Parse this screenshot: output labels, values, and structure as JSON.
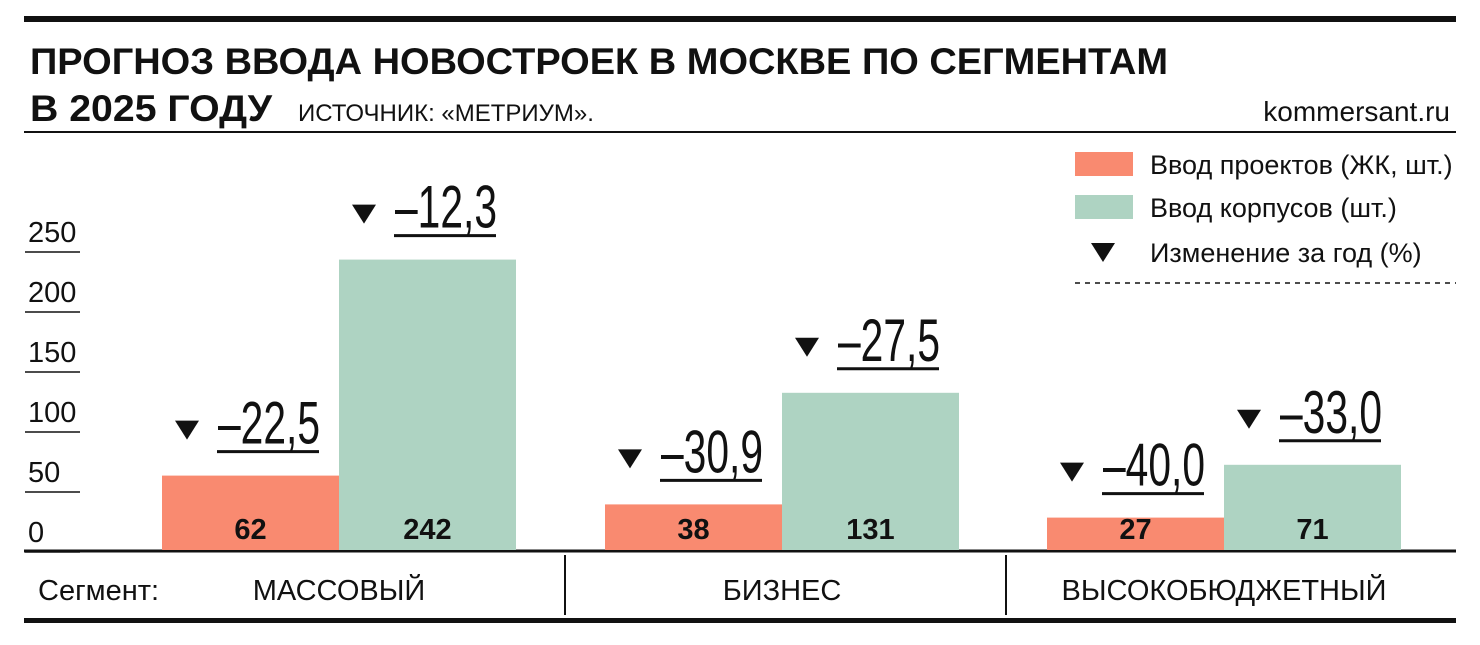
{
  "chart_data": {
    "type": "bar",
    "title": [
      "ПРОГНОЗ ВВОДА НОВОСТРОЕК В МОСКВЕ ПО СЕГМЕНТАМ",
      "В 2025 ГОДУ"
    ],
    "source": "ИСТОЧНИК: «МЕТРИУМ».",
    "brand": "kommersant.ru",
    "category_label": "Сегмент:",
    "categories": [
      "МАССОВЫЙ",
      "БИЗНЕС",
      "ВЫСОКОБЮДЖЕТНЫЙ"
    ],
    "change_legend": "Изменение за год (%)",
    "series": [
      {
        "name": "Ввод проектов (ЖК, шт.)",
        "color": "#f98a70",
        "values": [
          62,
          38,
          27
        ],
        "changes": [
          -22.5,
          -30.9,
          -40.0
        ],
        "change_labels": [
          "–22,5",
          "–30,9",
          "–40,0"
        ]
      },
      {
        "name": "Ввод корпусов (шт.)",
        "color": "#aed3c2",
        "values": [
          242,
          131,
          71
        ],
        "changes": [
          -12.3,
          -27.5,
          -33.0
        ],
        "change_labels": [
          "–12,3",
          "–27,5",
          "–33,0"
        ]
      }
    ],
    "ylim": [
      0,
      250
    ],
    "yticks": [
      0,
      50,
      100,
      150,
      200,
      250
    ]
  }
}
